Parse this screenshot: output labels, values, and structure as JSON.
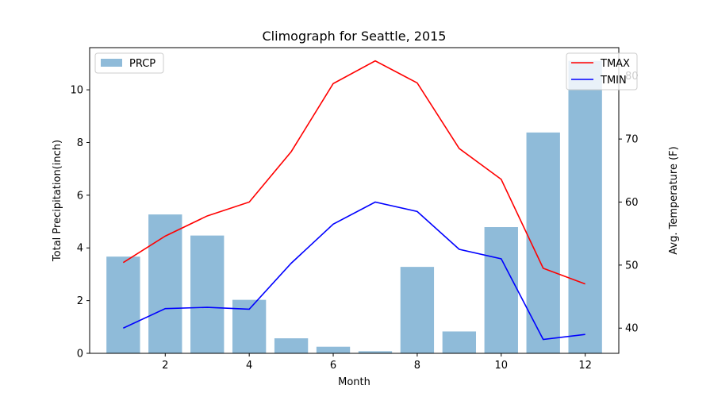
{
  "chart_data": {
    "type": "bar+line",
    "title": "Climograph for Seattle, 2015",
    "xlabel": "Month",
    "ylabel_left": "Total Precipitation(inch)",
    "ylabel_right": "Avg. Temperature (F)",
    "x": [
      1,
      2,
      3,
      4,
      5,
      6,
      7,
      8,
      9,
      10,
      11,
      12
    ],
    "xlim": [
      0.2,
      12.8
    ],
    "xticks": [
      2,
      4,
      6,
      8,
      10,
      12
    ],
    "ylim_left": [
      0,
      11.6
    ],
    "yticks_left": [
      0,
      2,
      4,
      6,
      8,
      10
    ],
    "ylim_right": [
      36,
      84.5
    ],
    "yticks_right": [
      40,
      50,
      60,
      70,
      80
    ],
    "bar_series": {
      "name": "PRCP",
      "color": "#8fbbd9",
      "values": [
        3.67,
        5.27,
        4.47,
        2.03,
        0.57,
        0.25,
        0.08,
        3.28,
        0.83,
        4.79,
        8.38,
        11.1
      ]
    },
    "line_series": [
      {
        "name": "TMAX",
        "color": "#ff0000",
        "values": [
          50.4,
          54.6,
          57.8,
          60.0,
          68.0,
          78.8,
          82.4,
          78.9,
          68.5,
          63.6,
          49.5,
          47.0
        ]
      },
      {
        "name": "TMIN",
        "color": "#0000ff",
        "values": [
          40.0,
          43.1,
          43.3,
          43.0,
          50.3,
          56.5,
          60.0,
          58.5,
          52.5,
          51.0,
          38.2,
          39.0
        ]
      }
    ],
    "legend_left_placement": "upper-left",
    "legend_right_placement": "upper-right",
    "grid": false
  }
}
